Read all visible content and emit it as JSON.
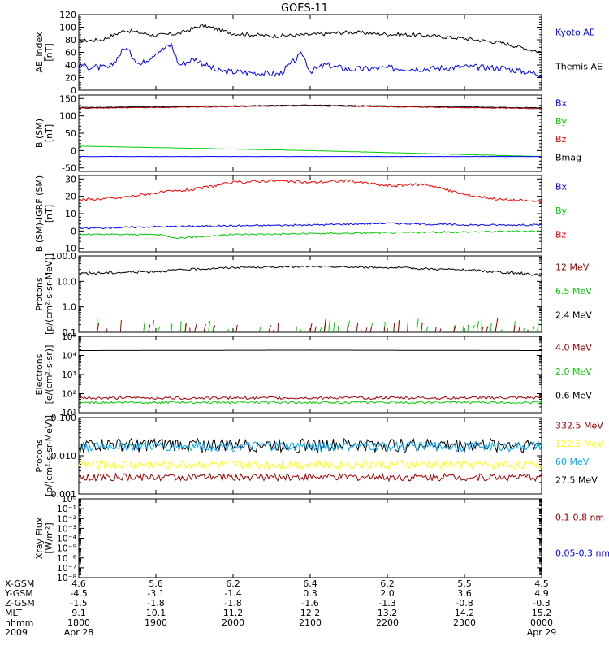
{
  "title": "GOES-11",
  "colors": {
    "black": "#000000",
    "blue": "#0000ff",
    "green": "#00cc00",
    "red": "#ff0000",
    "darkred": "#a00000",
    "yellow": "#ffff00",
    "cyan": "#00aaff"
  },
  "chart_data": [
    {
      "type": "line",
      "ylabel": [
        "AE_index",
        "[nT]"
      ],
      "yticks": [
        {
          "v": 0,
          "label": "0"
        },
        {
          "v": 20,
          "label": "20"
        },
        {
          "v": 40,
          "label": "40"
        },
        {
          "v": 60,
          "label": "60"
        },
        {
          "v": 80,
          "label": "80"
        },
        {
          "v": 100,
          "label": "100"
        },
        {
          "v": 120,
          "label": "120"
        }
      ],
      "ylim": [
        0,
        120
      ],
      "scale": "linear",
      "legend": [
        {
          "text": "Kyoto AE",
          "color": "#0000ff"
        },
        {
          "text": "Themis AE",
          "color": "#000000"
        }
      ],
      "series": [
        {
          "color": "#000000",
          "x": [
            0,
            0.3,
            0.6,
            1.0,
            1.3,
            1.6,
            2.0,
            2.5,
            3.0,
            3.5,
            4.0,
            4.5,
            5.0,
            5.5,
            6.0
          ],
          "y": [
            78,
            80,
            95,
            87,
            90,
            103,
            90,
            86,
            88,
            92,
            89,
            87,
            82,
            75,
            60
          ],
          "noise": 3
        },
        {
          "color": "#0000ff",
          "x": [
            0,
            0.4,
            0.6,
            0.8,
            1.0,
            1.2,
            1.3,
            1.5,
            1.8,
            2.2,
            2.6,
            2.9,
            3.0,
            3.2,
            3.5,
            4.0,
            4.5,
            5.0,
            5.5,
            6.0
          ],
          "y": [
            38,
            35,
            68,
            40,
            60,
            72,
            40,
            50,
            30,
            28,
            25,
            58,
            30,
            40,
            33,
            35,
            34,
            37,
            35,
            25
          ],
          "noise": 5
        }
      ]
    },
    {
      "type": "line",
      "ylabel": [
        "B (SM)",
        "[nT]"
      ],
      "yticks": [
        {
          "v": -50,
          "label": "-50"
        },
        {
          "v": 0,
          "label": "0"
        },
        {
          "v": 50,
          "label": "50"
        },
        {
          "v": 100,
          "label": "100"
        },
        {
          "v": 150,
          "label": "150"
        }
      ],
      "ylim": [
        -60,
        160
      ],
      "scale": "linear",
      "legend": [
        {
          "text": "Bx",
          "color": "#0000ff"
        },
        {
          "text": "By",
          "color": "#00cc00"
        },
        {
          "text": "Bz",
          "color": "#ff0000"
        },
        {
          "text": "Bmag",
          "color": "#000000"
        }
      ],
      "series": [
        {
          "color": "#000000",
          "x": [
            0,
            3,
            6
          ],
          "y": [
            124,
            131,
            123
          ],
          "noise": 1
        },
        {
          "color": "#a00000",
          "x": [
            0,
            3,
            6
          ],
          "y": [
            122,
            129,
            121
          ],
          "noise": 1
        },
        {
          "color": "#00cc00",
          "x": [
            0,
            3,
            6
          ],
          "y": [
            13,
            0,
            -17
          ],
          "noise": 0.3
        },
        {
          "color": "#0000ff",
          "x": [
            0,
            3,
            6
          ],
          "y": [
            -17,
            -17,
            -17
          ],
          "noise": 0.3
        }
      ]
    },
    {
      "type": "line",
      "ylabel": [
        "B (SM)-IGRF (SM)",
        "[nT]"
      ],
      "yticks": [
        {
          "v": -10,
          "label": "-10"
        },
        {
          "v": 0,
          "label": "0"
        },
        {
          "v": 10,
          "label": "10"
        },
        {
          "v": 20,
          "label": "20"
        },
        {
          "v": 30,
          "label": "30"
        }
      ],
      "ylim": [
        -12,
        32
      ],
      "scale": "linear",
      "legend": [
        {
          "text": "Bx",
          "color": "#0000ff"
        },
        {
          "text": "By",
          "color": "#00cc00"
        },
        {
          "text": "Bz",
          "color": "#ff0000"
        }
      ],
      "series": [
        {
          "color": "#ff0000",
          "x": [
            0,
            0.5,
            1.0,
            1.5,
            2.0,
            2.5,
            3.0,
            3.5,
            4.0,
            4.5,
            5.0,
            5.5,
            6.0
          ],
          "y": [
            18,
            19,
            22,
            24,
            28,
            29,
            28,
            29,
            26,
            27,
            21,
            18,
            17
          ],
          "noise": 0.8
        },
        {
          "color": "#0000ff",
          "x": [
            0,
            1.0,
            2.0,
            3.0,
            4.0,
            5.0,
            6.0
          ],
          "y": [
            1.5,
            2.5,
            3,
            3.5,
            4.5,
            3.5,
            3.5
          ],
          "noise": 0.5
        },
        {
          "color": "#00cc00",
          "x": [
            0,
            1.0,
            1.3,
            2.0,
            3.0,
            4.0,
            5.0,
            6.0
          ],
          "y": [
            -2,
            -2,
            -4,
            -2,
            -1.5,
            -1,
            -0.5,
            0
          ],
          "noise": 0.5
        }
      ]
    },
    {
      "type": "line",
      "ylabel": [
        "Protons",
        "[p/(cm²-s-sr-MeV)]"
      ],
      "yticks": [
        {
          "v": 0.1,
          "label": "0.1"
        },
        {
          "v": 1.0,
          "label": "1.0"
        },
        {
          "v": 10.0,
          "label": "10.0"
        },
        {
          "v": 100.0,
          "label": "100.0"
        }
      ],
      "ylim": [
        0.1,
        100
      ],
      "scale": "log",
      "legend": [
        {
          "text": "12 MeV",
          "color": "#a00000"
        },
        {
          "text": "6.5 MeV",
          "color": "#00cc00"
        },
        {
          "text": "2.4 MeV",
          "color": "#000000"
        }
      ],
      "series": [
        {
          "color": "#000000",
          "x": [
            0,
            1.0,
            2.0,
            3.0,
            4.0,
            5.0,
            6.0
          ],
          "y": [
            20,
            25,
            35,
            38,
            35,
            28,
            18
          ],
          "noise": 3
        },
        {
          "color": "#00cc00",
          "sparse": true,
          "x": [
            0,
            6.0
          ],
          "y": [
            0.12,
            0.12
          ],
          "noise": 0.2
        },
        {
          "color": "#a00000",
          "sparse": true,
          "x": [
            0,
            6.0
          ],
          "y": [
            0.1,
            0.1
          ],
          "noise": 0.1
        }
      ]
    },
    {
      "type": "line",
      "ylabel": [
        "Electrons",
        "[e/(cm²-s-sr)]"
      ],
      "yticks": [
        {
          "v": 10,
          "label": "10¹"
        },
        {
          "v": 100,
          "label": "10²"
        },
        {
          "v": 1000,
          "label": "10³"
        },
        {
          "v": 10000,
          "label": "10⁴"
        },
        {
          "v": 100000,
          "label": "10⁵"
        }
      ],
      "ylim": [
        10,
        100000
      ],
      "scale": "log",
      "legend": [
        {
          "text": "4.0 MeV",
          "color": "#a00000"
        },
        {
          "text": "2.0 MeV",
          "color": "#00cc00"
        },
        {
          "text": "0.6 MeV",
          "color": "#000000"
        }
      ],
      "series": [
        {
          "color": "#000000",
          "x": [
            0,
            3,
            6
          ],
          "y": [
            18000,
            19000,
            18000
          ],
          "noise": 0.3
        },
        {
          "color": "#a00000",
          "x": [
            0,
            6.0
          ],
          "y": [
            60,
            60
          ],
          "noise": 10
        },
        {
          "color": "#00cc00",
          "x": [
            0,
            6.0
          ],
          "y": [
            35,
            35
          ],
          "noise": 5
        }
      ]
    },
    {
      "type": "line",
      "ylabel": [
        "Protons",
        "[p/(cm²-s-sr-MeV)]"
      ],
      "yticks": [
        {
          "v": 0.001,
          "label": "0.001"
        },
        {
          "v": 0.01,
          "label": "0.010"
        },
        {
          "v": 0.1,
          "label": "0.100"
        }
      ],
      "ylim": [
        0.001,
        0.1
      ],
      "scale": "log",
      "legend": [
        {
          "text": "332.5 MeV",
          "color": "#a00000"
        },
        {
          "text": "122.5 MeV",
          "color": "#ffff00"
        },
        {
          "text": "60 MeV",
          "color": "#00aaff"
        },
        {
          "text": "27.5 MeV",
          "color": "#000000"
        }
      ],
      "series": [
        {
          "color": "#000000",
          "x": [
            0,
            6.0
          ],
          "y": [
            0.02,
            0.02
          ],
          "noise": 0.008
        },
        {
          "color": "#00aaff",
          "x": [
            0,
            6.0
          ],
          "y": [
            0.018,
            0.018
          ],
          "noise": 0.005
        },
        {
          "color": "#ffff00",
          "x": [
            0,
            6.0
          ],
          "y": [
            0.006,
            0.006
          ],
          "noise": 0.0015
        },
        {
          "color": "#a00000",
          "x": [
            0,
            6.0
          ],
          "y": [
            0.0028,
            0.0028
          ],
          "noise": 0.0006
        }
      ]
    },
    {
      "type": "line",
      "ylabel": [
        "Xray Flux",
        "[W/m²]"
      ],
      "yticks": [
        {
          "v": 1e-08,
          "label": "10⁻⁸"
        },
        {
          "v": 1e-07,
          "label": "10⁻⁷"
        },
        {
          "v": 1e-06,
          "label": "10⁻⁶"
        },
        {
          "v": 1e-05,
          "label": "10⁻⁵"
        },
        {
          "v": 0.0001,
          "label": "10⁻⁴"
        },
        {
          "v": 0.001,
          "label": "10⁻³"
        },
        {
          "v": 0.01,
          "label": "10⁻²"
        },
        {
          "v": 0.1,
          "label": "10⁻¹"
        },
        {
          "v": 1,
          "label": "10⁰"
        }
      ],
      "ylim": [
        1e-08,
        1
      ],
      "scale": "log",
      "legend": [
        {
          "text": "0.1-0.8 nm",
          "color": "#a00000"
        },
        {
          "text": "0.05-0.3 nm",
          "color": "#0000ff"
        }
      ],
      "series": []
    }
  ],
  "xaxis": {
    "range": [
      0,
      6
    ],
    "row_labels": [
      "X-GSM",
      "Y-GSM",
      "Z-GSM",
      "MLT",
      "hhmm",
      "2009"
    ],
    "columns": [
      {
        "x": 0,
        "values": [
          "4.6",
          "-4.5",
          "-1.5",
          "9.1",
          "1800",
          "Apr 28"
        ]
      },
      {
        "x": 1,
        "values": [
          "5.6",
          "-3.1",
          "-1.8",
          "10.1",
          "1900",
          ""
        ]
      },
      {
        "x": 2,
        "values": [
          "6.2",
          "-1.4",
          "-1.8",
          "11.2",
          "2000",
          ""
        ]
      },
      {
        "x": 3,
        "values": [
          "6.4",
          "0.3",
          "-1.6",
          "12.2",
          "2100",
          ""
        ]
      },
      {
        "x": 4,
        "values": [
          "6.2",
          "2.0",
          "-1.3",
          "13.2",
          "2200",
          ""
        ]
      },
      {
        "x": 5,
        "values": [
          "5.5",
          "3.6",
          "-0.8",
          "14.2",
          "2300",
          ""
        ]
      },
      {
        "x": 6,
        "values": [
          "4.5",
          "4.9",
          "-0.3",
          "15.2",
          "0000",
          "Apr 29"
        ]
      }
    ]
  }
}
